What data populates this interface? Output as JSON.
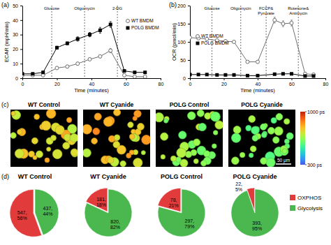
{
  "chart_data": [
    {
      "type": "line",
      "panel_label": "(a)",
      "x_label": "Time (minutes)",
      "y_label": "ECAR (mpH/min)",
      "xlim": [
        0,
        80
      ],
      "xticks": [
        0,
        20,
        40,
        60,
        80
      ],
      "ylim": [
        0,
        50
      ],
      "yticks": [
        0,
        10,
        20,
        30,
        40,
        50
      ],
      "legend": "upper right",
      "annotations": [
        {
          "x": 17,
          "text": [
            "Glucose"
          ]
        },
        {
          "x": 36,
          "text": [
            "Oligomycin"
          ]
        },
        {
          "x": 55,
          "text": [
            "2-DG"
          ]
        }
      ],
      "x": [
        0,
        6,
        12,
        20,
        26,
        32,
        39,
        45,
        51,
        59,
        65,
        71
      ],
      "series": [
        {
          "name": "WT BMDM",
          "color": "#707070",
          "marker": "open-circle",
          "values": [
            2,
            2,
            2,
            7,
            8,
            10,
            13,
            15,
            19,
            2,
            1,
            1
          ],
          "errors": [
            0.5,
            0.5,
            0.5,
            1,
            1,
            1,
            1,
            1,
            1.5,
            0.5,
            0.5,
            0.5
          ]
        },
        {
          "name": "POLG BMDM",
          "color": "#000000",
          "marker": "square",
          "values": [
            3,
            3,
            4,
            21,
            24,
            27,
            30,
            33,
            37,
            5,
            4,
            4
          ],
          "errors": [
            0.5,
            0.5,
            0.5,
            1,
            1,
            1.5,
            1.5,
            2,
            2,
            0.5,
            0.5,
            0.5
          ]
        }
      ]
    },
    {
      "type": "line",
      "panel_label": "(b)",
      "x_label": "Time (minutes)",
      "y_label": "OCR (pmol/min)",
      "xlim": [
        0,
        80
      ],
      "xticks": [
        0,
        20,
        40,
        60,
        80
      ],
      "ylim": [
        0,
        200
      ],
      "yticks": [
        0,
        50,
        100,
        150,
        200
      ],
      "legend": "left",
      "annotations": [
        {
          "x": 13,
          "text": [
            "Glucose"
          ]
        },
        {
          "x": 30,
          "text": [
            "Oligomycin"
          ]
        },
        {
          "x": 45,
          "text": [
            "FCCP&",
            "Pyruvate"
          ]
        },
        {
          "x": 64,
          "text": [
            "Rotenone&",
            "Antimycin"
          ]
        }
      ],
      "x": [
        0,
        5,
        10,
        16,
        21,
        26,
        34,
        40,
        50,
        55,
        60,
        68,
        73
      ],
      "series": [
        {
          "name": "WT BMDM",
          "color": "#707070",
          "marker": "open-circle",
          "values": [
            112,
            110,
            108,
            104,
            102,
            100,
            45,
            45,
            160,
            150,
            152,
            12,
            10
          ],
          "errors": [
            3,
            3,
            3,
            3,
            3,
            3,
            2,
            2,
            8,
            8,
            8,
            2,
            2
          ]
        },
        {
          "name": "POLG BMDM",
          "color": "#000000",
          "marker": "square",
          "values": [
            10,
            10,
            10,
            9,
            9,
            9,
            7,
            7,
            11,
            12,
            12,
            6,
            6
          ],
          "errors": [
            1,
            1,
            1,
            1,
            1,
            1,
            1,
            1,
            1,
            1,
            1,
            1,
            1
          ]
        }
      ]
    },
    {
      "type": "image",
      "panel_label": "(c)",
      "titles": [
        "WT Control",
        "WT Cyanide",
        "POLG Control",
        "POLG Cyanide"
      ],
      "colorbar": {
        "range": [
          300,
          1000
        ],
        "ticks": [
          {
            "value": 1000,
            "label": "1000 ps"
          },
          {
            "value": 300,
            "label": "300 ps"
          }
        ]
      },
      "annotations": [
        {
          "text": "50 μm"
        }
      ]
    },
    {
      "type": "pie",
      "panel_label": "(d)",
      "categories": [
        "OXPHOS",
        "Glycolysis"
      ],
      "colors": [
        "#e23b3b",
        "#4bb84f"
      ],
      "legend": "right",
      "data_labels": true,
      "pies": [
        {
          "title": "WT Control",
          "values": [
            547,
            437
          ],
          "value_labels": [
            "547, 56%",
            "437, 44%"
          ]
        },
        {
          "title": "WT Cyanide",
          "values": [
            181,
            820
          ],
          "value_labels": [
            "181, 18%",
            "820, 82%"
          ]
        },
        {
          "title": "POLG Control",
          "values": [
            78,
            297
          ],
          "value_labels": [
            "78, 21%",
            "297, 79%"
          ]
        },
        {
          "title": "POLG Cyanide",
          "values": [
            22,
            393
          ],
          "value_labels": [
            "22, 5%",
            "393, 95%"
          ]
        }
      ]
    }
  ]
}
